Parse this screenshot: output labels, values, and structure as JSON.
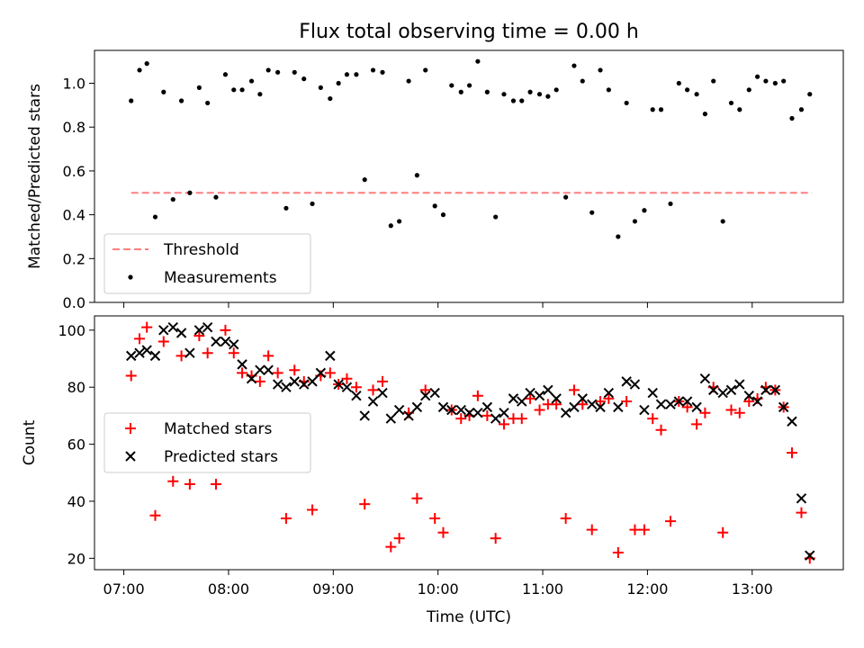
{
  "chart_data": [
    {
      "type": "scatter",
      "title": "Flux total observing time = 0.00 h",
      "xlabel": "",
      "ylabel": "Matched/Predicted stars",
      "xlim": [
        6.72,
        13.87
      ],
      "ylim": [
        0.0,
        1.15
      ],
      "yticks": [
        0.0,
        0.2,
        0.4,
        0.6,
        0.8,
        1.0
      ],
      "ytick_labels": [
        "0.0",
        "0.2",
        "0.4",
        "0.6",
        "0.8",
        "1.0"
      ],
      "xticks": [
        7,
        8,
        9,
        10,
        11,
        12,
        13
      ],
      "legend_position": "lower-left",
      "lines": [
        {
          "name": "Threshold",
          "style": "dashed",
          "color": "#ff7f7f",
          "x": [
            7.07,
            13.57
          ],
          "y": [
            0.5,
            0.5
          ]
        }
      ],
      "series": [
        {
          "name": "Measurements",
          "marker": "dot",
          "color": "#000000",
          "x": [
            7.07,
            7.15,
            7.22,
            7.3,
            7.38,
            7.47,
            7.55,
            7.63,
            7.72,
            7.8,
            7.88,
            7.97,
            8.05,
            8.13,
            8.22,
            8.3,
            8.38,
            8.47,
            8.55,
            8.63,
            8.72,
            8.8,
            8.88,
            8.97,
            9.05,
            9.13,
            9.22,
            9.3,
            9.38,
            9.47,
            9.55,
            9.63,
            9.72,
            9.8,
            9.88,
            9.97,
            10.05,
            10.13,
            10.22,
            10.3,
            10.38,
            10.47,
            10.55,
            10.63,
            10.72,
            10.8,
            10.88,
            10.97,
            11.05,
            11.13,
            11.22,
            11.3,
            11.38,
            11.47,
            11.55,
            11.63,
            11.72,
            11.8,
            11.88,
            11.97,
            12.05,
            12.13,
            12.22,
            12.3,
            12.38,
            12.47,
            12.55,
            12.63,
            12.72,
            12.8,
            12.88,
            12.97,
            13.05,
            13.13,
            13.22,
            13.3,
            13.38,
            13.47,
            13.55
          ],
          "y": [
            0.92,
            1.06,
            1.09,
            0.39,
            0.96,
            0.47,
            0.92,
            0.5,
            0.98,
            0.91,
            0.48,
            1.04,
            0.97,
            0.97,
            1.01,
            0.95,
            1.06,
            1.05,
            0.43,
            1.05,
            1.02,
            0.45,
            0.98,
            0.93,
            1.0,
            1.04,
            1.04,
            0.56,
            1.06,
            1.05,
            0.35,
            0.37,
            1.01,
            0.58,
            1.06,
            0.44,
            0.4,
            0.99,
            0.96,
            0.99,
            1.1,
            0.96,
            0.39,
            0.95,
            0.92,
            0.92,
            0.96,
            0.95,
            0.94,
            0.97,
            0.48,
            1.08,
            1.01,
            0.41,
            1.06,
            0.97,
            0.3,
            0.91,
            0.37,
            0.42,
            0.88,
            0.88,
            0.45,
            1.0,
            0.97,
            0.95,
            0.86,
            1.01,
            0.37,
            0.91,
            0.88,
            0.97,
            1.03,
            1.01,
            1.0,
            1.01,
            0.84,
            0.88,
            0.95
          ]
        }
      ]
    },
    {
      "type": "scatter",
      "title": "",
      "xlabel": "Time (UTC)",
      "ylabel": "Count",
      "xlim": [
        6.72,
        13.87
      ],
      "ylim": [
        16.0,
        105.0
      ],
      "yticks": [
        20,
        40,
        60,
        80,
        100
      ],
      "ytick_labels": [
        "20",
        "40",
        "60",
        "80",
        "100"
      ],
      "xticks": [
        7,
        8,
        9,
        10,
        11,
        12,
        13
      ],
      "xtick_labels": [
        "07:00",
        "08:00",
        "09:00",
        "10:00",
        "11:00",
        "12:00",
        "13:00"
      ],
      "legend_position": "center-left",
      "x": [
        7.07,
        7.15,
        7.22,
        7.3,
        7.38,
        7.47,
        7.55,
        7.63,
        7.72,
        7.8,
        7.88,
        7.97,
        8.05,
        8.13,
        8.22,
        8.3,
        8.38,
        8.47,
        8.55,
        8.63,
        8.72,
        8.8,
        8.88,
        8.97,
        9.05,
        9.13,
        9.22,
        9.3,
        9.38,
        9.47,
        9.55,
        9.63,
        9.72,
        9.8,
        9.88,
        9.97,
        10.05,
        10.13,
        10.22,
        10.3,
        10.38,
        10.47,
        10.55,
        10.63,
        10.72,
        10.8,
        10.88,
        10.97,
        11.05,
        11.13,
        11.22,
        11.3,
        11.38,
        11.47,
        11.55,
        11.63,
        11.72,
        11.8,
        11.88,
        11.97,
        12.05,
        12.13,
        12.22,
        12.3,
        12.38,
        12.47,
        12.55,
        12.63,
        12.72,
        12.8,
        12.88,
        12.97,
        13.05,
        13.13,
        13.22,
        13.3,
        13.38,
        13.47,
        13.55
      ],
      "series": [
        {
          "name": "Matched stars",
          "marker": "plus",
          "color": "#ff0000",
          "values": [
            84,
            97,
            101,
            35,
            96,
            47,
            91,
            46,
            98,
            92,
            46,
            100,
            92,
            85,
            84,
            82,
            91,
            85,
            34,
            86,
            82,
            37,
            84,
            85,
            81,
            83,
            80,
            39,
            79,
            82,
            24,
            27,
            71,
            41,
            79,
            34,
            29,
            72,
            69,
            70,
            77,
            70,
            27,
            67,
            69,
            69,
            76,
            72,
            74,
            74,
            34,
            79,
            74,
            30,
            75,
            76,
            22,
            75,
            30,
            30,
            69,
            65,
            33,
            75,
            73,
            67,
            71,
            80,
            29,
            72,
            71,
            75,
            76,
            80,
            79,
            73,
            57,
            36,
            20
          ]
        },
        {
          "name": "Predicted stars",
          "marker": "x",
          "color": "#000000",
          "values": [
            91,
            92,
            93,
            91,
            100,
            101,
            99,
            92,
            100,
            101,
            96,
            96,
            95,
            88,
            83,
            86,
            86,
            81,
            80,
            82,
            81,
            82,
            85,
            91,
            81,
            80,
            77,
            70,
            75,
            78,
            69,
            72,
            70,
            73,
            77,
            78,
            73,
            72,
            72,
            71,
            71,
            73,
            69,
            71,
            76,
            75,
            78,
            77,
            79,
            76,
            71,
            73,
            76,
            74,
            73,
            78,
            73,
            82,
            81,
            72,
            78,
            74,
            74,
            75,
            75,
            73,
            83,
            79,
            78,
            79,
            81,
            77,
            75,
            79,
            79,
            73,
            68,
            41,
            21
          ]
        }
      ]
    }
  ]
}
